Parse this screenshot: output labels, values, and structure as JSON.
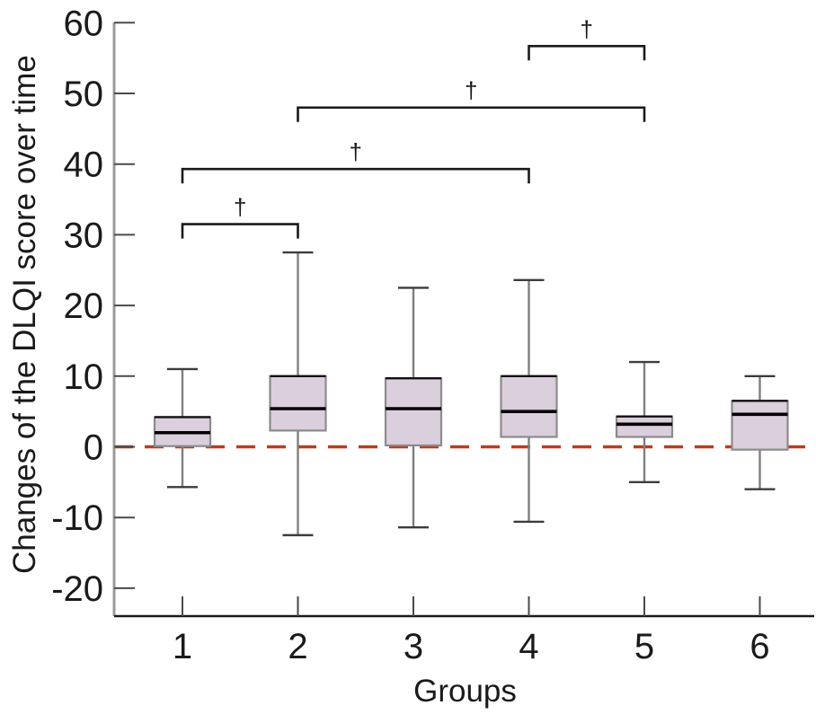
{
  "chart_data": {
    "type": "boxplot",
    "title": "",
    "xlabel": "Groups",
    "ylabel": "Changes of the DLQI score over time",
    "categories": [
      "1",
      "2",
      "3",
      "4",
      "5",
      "6"
    ],
    "yticks": [
      60,
      50,
      40,
      30,
      20,
      10,
      0,
      -10,
      -20
    ],
    "ylim": [
      -24,
      61
    ],
    "grid": false,
    "legend": "none",
    "boxes": [
      {
        "group": "1",
        "whisker_low": -5.7,
        "q1": 0.1,
        "median": 2.0,
        "q3": 4.2,
        "whisker_high": 11.0
      },
      {
        "group": "2",
        "whisker_low": -12.5,
        "q1": 2.3,
        "median": 5.4,
        "q3": 10.0,
        "whisker_high": 27.5
      },
      {
        "group": "3",
        "whisker_low": -11.4,
        "q1": 0.2,
        "median": 5.4,
        "q3": 9.7,
        "whisker_high": 22.5
      },
      {
        "group": "4",
        "whisker_low": -10.6,
        "q1": 1.4,
        "median": 5.0,
        "q3": 10.0,
        "whisker_high": 23.6
      },
      {
        "group": "5",
        "whisker_low": -5.0,
        "q1": 1.4,
        "median": 3.2,
        "q3": 4.3,
        "whisker_high": 12.0
      },
      {
        "group": "6",
        "whisker_low": -6.0,
        "q1": -0.4,
        "median": 4.6,
        "q3": 6.5,
        "whisker_high": 10.0
      }
    ],
    "reference_line": {
      "y": 0,
      "style": "dashed",
      "color": "#c23a1c"
    },
    "significance_brackets": [
      {
        "from": "1",
        "to": "2",
        "label": "†",
        "y_value": 31.5
      },
      {
        "from": "1",
        "to": "4",
        "label": "†",
        "y_value": 39.3
      },
      {
        "from": "2",
        "to": "5",
        "label": "†",
        "y_value": 48.0
      },
      {
        "from": "4",
        "to": "5",
        "label": "†",
        "y_value": 56.7
      }
    ],
    "colors": {
      "box_fill": "#dbcedd",
      "box_edge": "#8b8b8b",
      "box_top_edge": "#111111",
      "median": "#000000",
      "whisker_stem": "#7f7f7f",
      "whisker_cap": "#3c3c3c",
      "y_axis_line": "#9b9b9b",
      "x_axis_line": "#1a1a1a",
      "tick": "#4a4a4a",
      "text": "#1a1a1a",
      "bracket": "#1a1a1a",
      "dashed_line": "#c23a1c",
      "background": "#ffffff"
    }
  }
}
